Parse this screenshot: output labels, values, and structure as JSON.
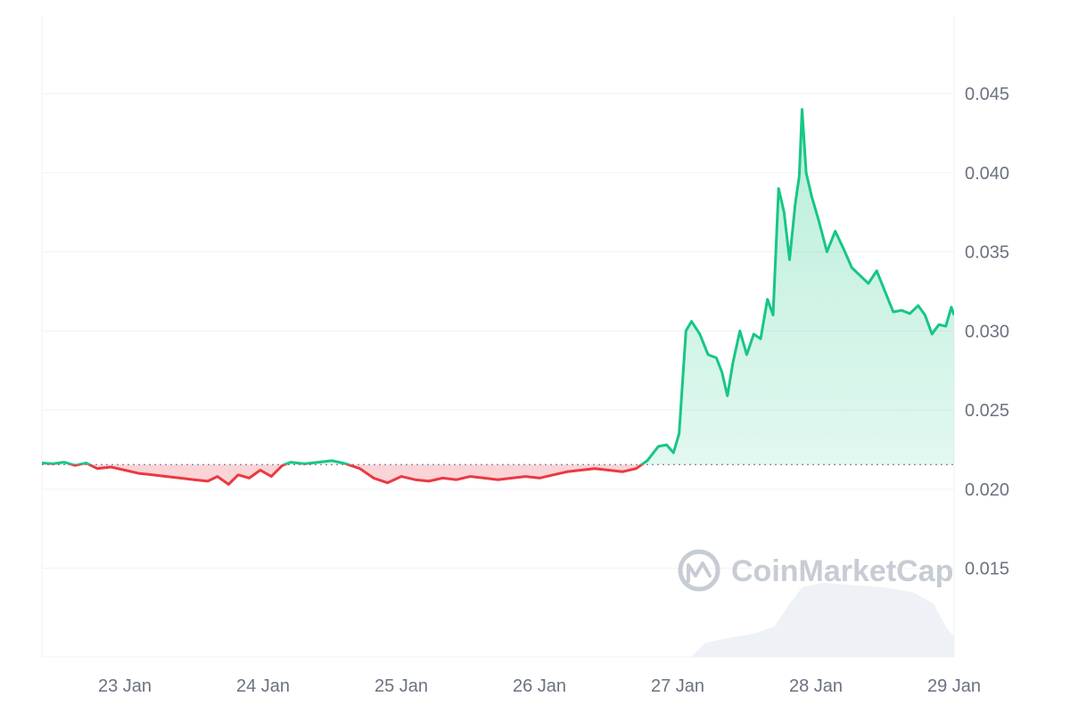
{
  "watermark": {
    "text": "CoinMarketCap"
  },
  "colors": {
    "up": "#16c784",
    "down": "#ea3943",
    "grid": "#eff2f5",
    "baseline": "#858ca2",
    "volume": "#eef1f5"
  },
  "chart_data": {
    "type": "line",
    "title": "",
    "xlabel": "",
    "ylabel": "",
    "x_ticks": [
      "23 Jan",
      "24 Jan",
      "25 Jan",
      "26 Jan",
      "27 Jan",
      "28 Jan",
      "29 Jan"
    ],
    "y_ticks": [
      "0.015",
      "0.020",
      "0.025",
      "0.030",
      "0.035",
      "0.040",
      "0.045"
    ],
    "ylim": [
      0.0094,
      0.0499
    ],
    "xlim_days": [
      22.4,
      29.0
    ],
    "grid": true,
    "reference_price": 0.02155,
    "price_series": [
      [
        22.4,
        0.02165
      ],
      [
        22.48,
        0.0216
      ],
      [
        22.56,
        0.0217
      ],
      [
        22.64,
        0.0215
      ],
      [
        22.72,
        0.02165
      ],
      [
        22.8,
        0.0213
      ],
      [
        22.9,
        0.0214
      ],
      [
        23.0,
        0.0212
      ],
      [
        23.1,
        0.021
      ],
      [
        23.2,
        0.0209
      ],
      [
        23.3,
        0.0208
      ],
      [
        23.4,
        0.0207
      ],
      [
        23.5,
        0.0206
      ],
      [
        23.6,
        0.0205
      ],
      [
        23.67,
        0.0208
      ],
      [
        23.75,
        0.0203
      ],
      [
        23.82,
        0.0209
      ],
      [
        23.9,
        0.0207
      ],
      [
        23.98,
        0.0212
      ],
      [
        24.06,
        0.0208
      ],
      [
        24.14,
        0.0215
      ],
      [
        24.2,
        0.0217
      ],
      [
        24.3,
        0.0216
      ],
      [
        24.4,
        0.0217
      ],
      [
        24.5,
        0.0218
      ],
      [
        24.6,
        0.0216
      ],
      [
        24.7,
        0.0213
      ],
      [
        24.8,
        0.0207
      ],
      [
        24.9,
        0.0204
      ],
      [
        25.0,
        0.0208
      ],
      [
        25.1,
        0.0206
      ],
      [
        25.2,
        0.0205
      ],
      [
        25.3,
        0.0207
      ],
      [
        25.4,
        0.0206
      ],
      [
        25.5,
        0.0208
      ],
      [
        25.6,
        0.0207
      ],
      [
        25.7,
        0.0206
      ],
      [
        25.8,
        0.0207
      ],
      [
        25.9,
        0.0208
      ],
      [
        26.0,
        0.0207
      ],
      [
        26.1,
        0.0209
      ],
      [
        26.2,
        0.0211
      ],
      [
        26.3,
        0.0212
      ],
      [
        26.4,
        0.0213
      ],
      [
        26.5,
        0.0212
      ],
      [
        26.6,
        0.0211
      ],
      [
        26.7,
        0.0213
      ],
      [
        26.78,
        0.0218
      ],
      [
        26.86,
        0.0227
      ],
      [
        26.92,
        0.0228
      ],
      [
        26.97,
        0.0223
      ],
      [
        27.01,
        0.0235
      ],
      [
        27.06,
        0.03
      ],
      [
        27.1,
        0.0306
      ],
      [
        27.16,
        0.0298
      ],
      [
        27.22,
        0.0285
      ],
      [
        27.28,
        0.0283
      ],
      [
        27.32,
        0.0274
      ],
      [
        27.36,
        0.0259
      ],
      [
        27.4,
        0.028
      ],
      [
        27.45,
        0.03
      ],
      [
        27.5,
        0.0285
      ],
      [
        27.55,
        0.0298
      ],
      [
        27.6,
        0.0295
      ],
      [
        27.65,
        0.032
      ],
      [
        27.69,
        0.031
      ],
      [
        27.73,
        0.039
      ],
      [
        27.77,
        0.0375
      ],
      [
        27.81,
        0.0345
      ],
      [
        27.85,
        0.038
      ],
      [
        27.88,
        0.0398
      ],
      [
        27.9,
        0.044
      ],
      [
        27.93,
        0.04
      ],
      [
        27.97,
        0.0385
      ],
      [
        28.02,
        0.037
      ],
      [
        28.08,
        0.035
      ],
      [
        28.14,
        0.0363
      ],
      [
        28.2,
        0.0352
      ],
      [
        28.26,
        0.034
      ],
      [
        28.32,
        0.0335
      ],
      [
        28.38,
        0.033
      ],
      [
        28.44,
        0.0338
      ],
      [
        28.5,
        0.0325
      ],
      [
        28.56,
        0.0312
      ],
      [
        28.62,
        0.0313
      ],
      [
        28.68,
        0.0311
      ],
      [
        28.74,
        0.0316
      ],
      [
        28.79,
        0.031
      ],
      [
        28.84,
        0.0298
      ],
      [
        28.89,
        0.0304
      ],
      [
        28.94,
        0.0303
      ],
      [
        28.98,
        0.0315
      ],
      [
        29.0,
        0.031
      ]
    ]
  }
}
